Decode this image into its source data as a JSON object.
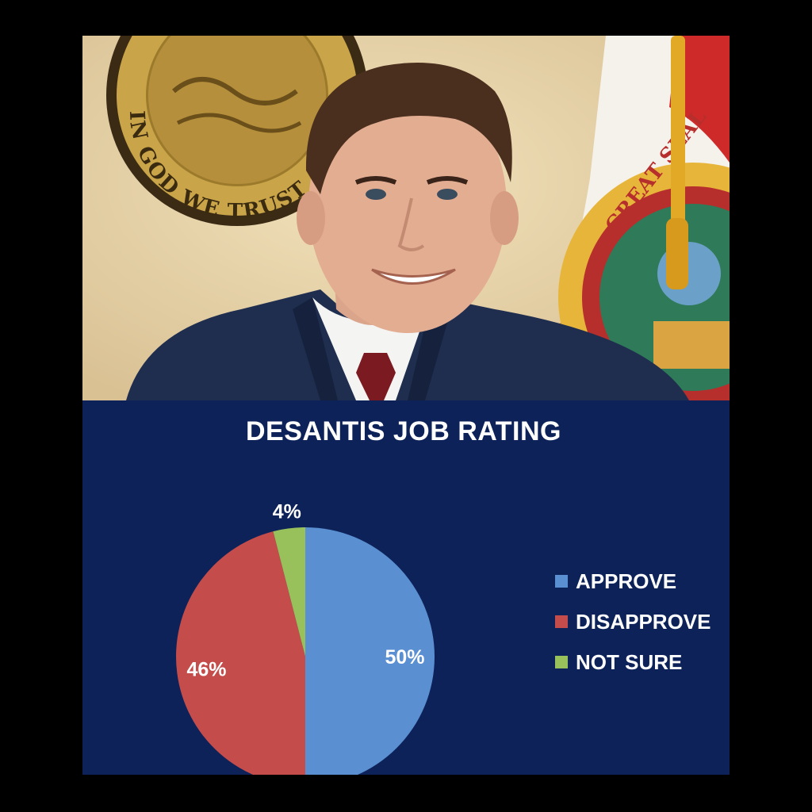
{
  "photo": {
    "seal_text": "IN GOD WE TRUST",
    "flag_text": "GREAT SEAL"
  },
  "colors": {
    "panel_background": "#0c2259",
    "page_background": "#000000",
    "approve": "#5a8fd1",
    "disapprove": "#c44d4b",
    "not_sure": "#98c15c"
  },
  "chart_data": {
    "type": "pie",
    "title": "DESANTIS JOB RATING",
    "slices": [
      {
        "label": "APPROVE",
        "value": 50,
        "display": "50%",
        "color": "#5a8fd1"
      },
      {
        "label": "DISAPPROVE",
        "value": 46,
        "display": "46%",
        "color": "#c44d4b"
      },
      {
        "label": "NOT SURE",
        "value": 4,
        "display": "4%",
        "color": "#98c15c"
      }
    ],
    "legend_position": "right"
  }
}
